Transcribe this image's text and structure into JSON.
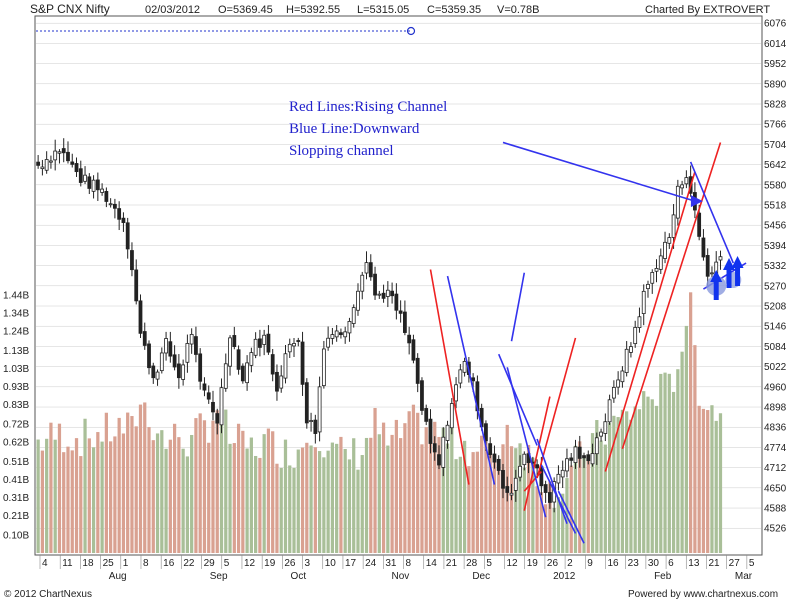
{
  "header": {
    "symbol": "S&P CNX Nifty",
    "date": "02/03/2012",
    "open": "O=5369.45",
    "high": "H=5392.55",
    "low": "L=5315.05",
    "close": "C=5359.35",
    "volume": "V=0.78B",
    "charted_by": "Charted By EXTROVERT"
  },
  "footer": {
    "copyright": "© 2012 ChartNexus",
    "powered_by": "Powered by www.chartnexus.com"
  },
  "annotation_lines": [
    "Red Lines:Rising Channel",
    "Blue Line:Downward",
    "Slopping channel"
  ],
  "colors": {
    "up": "#222222",
    "down": "#222222",
    "vol_up": "#a9bf98",
    "vol_down": "#d9a191",
    "red_line": "#ee2222",
    "blue_line": "#3333ee",
    "grid": "#cccccc",
    "annotation": "#2222cc",
    "arrow": "#1133ee",
    "circle": "#8899dd"
  },
  "chart_data": {
    "type": "candlestick",
    "title": "S&P CNX Nifty",
    "price_axis": {
      "ticks": [
        6076,
        6014,
        5952,
        5890,
        5828,
        5766,
        5704,
        5642,
        5580,
        5518,
        5456,
        5394,
        5332,
        5270,
        5208,
        5146,
        5084,
        5022,
        4960,
        4898,
        4836,
        4774,
        4712,
        4650,
        4588,
        4526
      ],
      "range": [
        4450,
        6095
      ]
    },
    "volume_axis": {
      "ticks": [
        "1.44B",
        "1.34B",
        "1.24B",
        "1.13B",
        "1.03B",
        "0.93B",
        "0.83B",
        "0.72B",
        "0.62B",
        "0.51B",
        "0.41B",
        "0.31B",
        "0.21B",
        "0.10B"
      ],
      "range": [
        0,
        1.44
      ]
    },
    "x_axis": {
      "day_ticks": [
        "4",
        "11",
        "18",
        "25",
        "1",
        "8",
        "16",
        "22",
        "29",
        "5",
        "12",
        "19",
        "26",
        "3",
        "10",
        "17",
        "24",
        "31",
        "8",
        "14",
        "21",
        "28",
        "5",
        "12",
        "19",
        "26",
        "2",
        "9",
        "16",
        "23",
        "30",
        "6",
        "13",
        "21",
        "27",
        "5"
      ],
      "month_labels": [
        "Aug",
        "Sep",
        "Oct",
        "Nov",
        "Dec",
        "2012",
        "Feb",
        "Mar"
      ]
    },
    "anchors": [
      [
        0,
        5640,
        0.62
      ],
      [
        5,
        5690,
        0.66
      ],
      [
        10,
        5600,
        0.64
      ],
      [
        15,
        5560,
        0.67
      ],
      [
        20,
        5470,
        0.7
      ],
      [
        22,
        5330,
        0.68
      ],
      [
        24,
        5120,
        0.85
      ],
      [
        27,
        4990,
        0.72
      ],
      [
        30,
        5090,
        0.62
      ],
      [
        33,
        4990,
        0.66
      ],
      [
        36,
        5130,
        0.6
      ],
      [
        38,
        4960,
        0.7
      ],
      [
        40,
        4920,
        0.72
      ],
      [
        42,
        4860,
        0.82
      ],
      [
        45,
        5130,
        0.64
      ],
      [
        48,
        4980,
        0.6
      ],
      [
        50,
        5080,
        0.58
      ],
      [
        53,
        5110,
        0.62
      ],
      [
        56,
        4960,
        0.6
      ],
      [
        58,
        5060,
        0.56
      ],
      [
        61,
        5110,
        0.58
      ],
      [
        63,
        4860,
        0.66
      ],
      [
        65,
        4830,
        0.7
      ],
      [
        67,
        5080,
        0.62
      ],
      [
        69,
        5140,
        0.56
      ],
      [
        72,
        5120,
        0.55
      ],
      [
        75,
        5270,
        0.56
      ],
      [
        77,
        5360,
        0.62
      ],
      [
        79,
        5240,
        0.72
      ],
      [
        82,
        5250,
        0.6
      ],
      [
        85,
        5170,
        0.66
      ],
      [
        88,
        5040,
        0.72
      ],
      [
        90,
        4890,
        0.7
      ],
      [
        92,
        4780,
        0.68
      ],
      [
        94,
        4720,
        0.66
      ],
      [
        96,
        4860,
        0.64
      ],
      [
        98,
        4960,
        0.6
      ],
      [
        100,
        5050,
        0.62
      ],
      [
        102,
        4960,
        0.56
      ],
      [
        104,
        4850,
        0.62
      ],
      [
        106,
        4760,
        0.52
      ],
      [
        108,
        4690,
        0.55
      ],
      [
        110,
        4620,
        0.7
      ],
      [
        112,
        4680,
        0.64
      ],
      [
        114,
        4760,
        0.58
      ],
      [
        116,
        4730,
        0.52
      ],
      [
        118,
        4660,
        0.4
      ],
      [
        120,
        4620,
        0.35
      ],
      [
        122,
        4690,
        0.36
      ],
      [
        124,
        4730,
        0.42
      ],
      [
        126,
        4760,
        0.5
      ],
      [
        128,
        4730,
        0.55
      ],
      [
        130,
        4770,
        0.62
      ],
      [
        133,
        4860,
        0.68
      ],
      [
        136,
        4990,
        0.74
      ],
      [
        139,
        5090,
        0.78
      ],
      [
        142,
        5240,
        0.85
      ],
      [
        145,
        5340,
        0.9
      ],
      [
        148,
        5420,
        0.92
      ],
      [
        150,
        5560,
        1.06
      ],
      [
        152,
        5620,
        1.3
      ],
      [
        153,
        5560,
        1.35
      ],
      [
        155,
        5420,
        0.92
      ],
      [
        157,
        5300,
        0.84
      ],
      [
        159,
        5340,
        0.8
      ],
      [
        160,
        5359,
        0.78
      ]
    ],
    "annotations": {
      "red_lines": [
        [
          [
            92,
            5320
          ],
          [
            101,
            4660
          ]
        ],
        [
          [
            114,
            4640
          ],
          [
            118,
            4700
          ]
        ],
        [
          [
            117,
            4680
          ],
          [
            126,
            5110
          ]
        ],
        [
          [
            114,
            4580
          ],
          [
            120,
            4930
          ]
        ],
        [
          [
            133,
            4700
          ],
          [
            154,
            5620
          ]
        ],
        [
          [
            137,
            4770
          ],
          [
            160,
            5710
          ]
        ]
      ],
      "blue_lines": [
        [
          [
            107,
            4660
          ],
          [
            96,
            5300
          ]
        ],
        [
          [
            111,
            5100
          ],
          [
            114,
            5310
          ]
        ],
        [
          [
            108,
            5060
          ],
          [
            117,
            4780
          ]
        ],
        [
          [
            110,
            5020
          ],
          [
            119,
            4560
          ]
        ],
        [
          [
            117,
            4800
          ],
          [
            124,
            4540
          ]
        ],
        [
          [
            118,
            4720
          ],
          [
            126,
            4510
          ]
        ],
        [
          [
            122,
            4640
          ],
          [
            128,
            4480
          ]
        ],
        [
          [
            109,
            5710
          ],
          [
            154,
            5530
          ]
        ],
        [
          [
            153,
            5650
          ],
          [
            163,
            5340
          ]
        ],
        [
          [
            156,
            5260
          ],
          [
            166,
            5340
          ]
        ]
      ],
      "arrows_up_at_index": [
        159,
        162,
        164
      ]
    }
  }
}
